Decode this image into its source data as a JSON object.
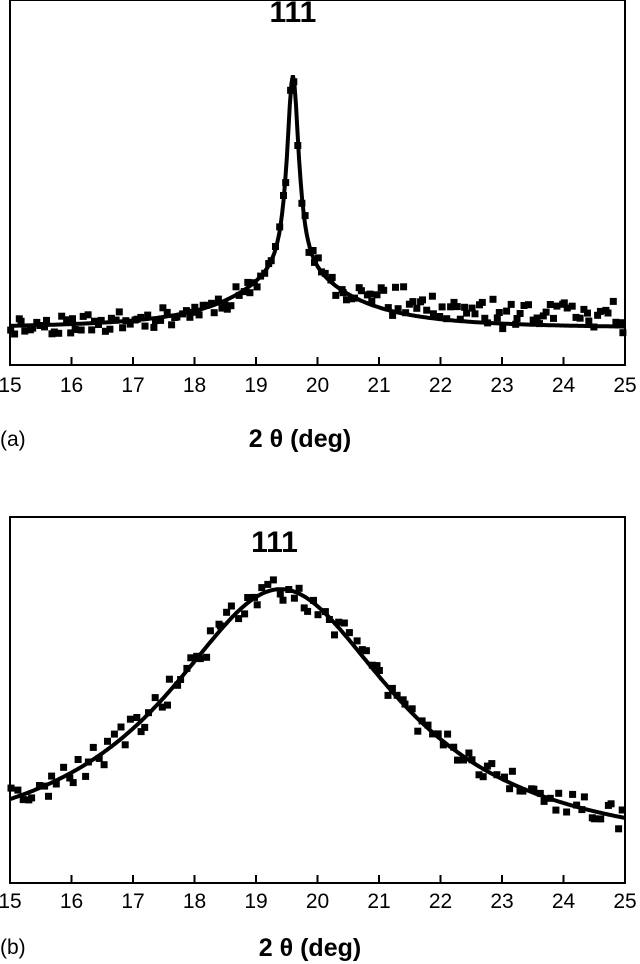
{
  "chart_data": [
    {
      "panel_label": "(a)",
      "type": "scatter",
      "xlabel": "2 θ (deg)",
      "ylabel": "",
      "xlim": [
        15,
        25
      ],
      "ylim": [
        0,
        1
      ],
      "x_ticks": [
        "15",
        "16",
        "17",
        "18",
        "19",
        "20",
        "21",
        "22",
        "23",
        "24",
        "25"
      ],
      "annotations": [
        {
          "text": "111",
          "x": 19.6,
          "y": 0.97
        }
      ],
      "fit": {
        "type": "pseudo-voigt",
        "center": 19.6,
        "baseline": 0.05,
        "narrow_amp": 0.62,
        "narrow_width": 0.12,
        "broad_amp": 0.16,
        "broad_width": 1.1
      },
      "series": [
        {
          "kind": "points",
          "noise_amp": 0.03,
          "n": 170
        },
        {
          "kind": "fit-curve"
        }
      ]
    },
    {
      "panel_label": "(b)",
      "type": "scatter",
      "xlabel": "2 θ (deg)",
      "ylabel": "",
      "xlim": [
        15,
        25
      ],
      "ylim": [
        0,
        1
      ],
      "x_ticks": [
        "15",
        "16",
        "17",
        "18",
        "19",
        "20",
        "21",
        "22",
        "23",
        "24",
        "25"
      ],
      "annotations": [
        {
          "text": "111",
          "x": 19.3,
          "y": 0.93
        }
      ],
      "fit": {
        "type": "lorentzian",
        "center": 19.4,
        "baseline": 0.02,
        "amp": 0.82,
        "width": 2.3
      },
      "series": [
        {
          "kind": "points",
          "noise_amp": 0.04,
          "n": 120
        },
        {
          "kind": "fit-curve"
        }
      ]
    }
  ]
}
